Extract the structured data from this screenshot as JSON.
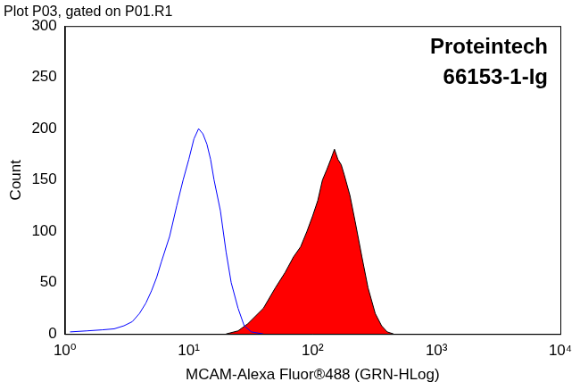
{
  "chart_data": {
    "type": "line",
    "title": "Plot P03, gated on P01.R1",
    "annotations": [
      "Proteintech",
      "66153-1-Ig"
    ],
    "x_label": "MCAM-Alexa Fluor®488 (GRN-HLog)",
    "y_label": "Count",
    "log": "x",
    "grid": false,
    "xlim": [
      1,
      10000
    ],
    "xticks": [
      {
        "value": 1,
        "label": "10⁰"
      },
      {
        "value": 10,
        "label": "10¹"
      },
      {
        "value": 100,
        "label": "10²"
      },
      {
        "value": 1000,
        "label": "10³"
      },
      {
        "value": 10000,
        "label": "10⁴"
      }
    ],
    "ylim": [
      0,
      300
    ],
    "yticks": [
      0,
      50,
      100,
      150,
      200,
      250,
      300
    ],
    "series": [
      {
        "type": "line",
        "color": "#0000ff",
        "x": [
          1.1,
          1.5,
          2,
          2.5,
          3,
          3.5,
          4,
          4.5,
          5,
          5.5,
          6,
          7,
          8,
          9,
          10,
          11,
          12,
          13,
          14,
          15,
          16,
          18,
          20,
          22,
          25,
          28,
          32,
          40
        ],
        "values": [
          2,
          3,
          4,
          5,
          8,
          12,
          20,
          30,
          42,
          55,
          70,
          95,
          125,
          150,
          170,
          190,
          200,
          195,
          185,
          170,
          150,
          120,
          80,
          50,
          25,
          8,
          2,
          0
        ]
      },
      {
        "type": "area",
        "color": "#ff0000",
        "x": [
          20,
          25,
          30,
          40,
          50,
          60,
          70,
          80,
          90,
          100,
          110,
          120,
          130,
          140,
          150,
          160,
          170,
          180,
          200,
          220,
          250,
          280,
          320,
          360,
          400,
          450
        ],
        "values": [
          0,
          3,
          10,
          25,
          45,
          60,
          75,
          85,
          100,
          115,
          130,
          150,
          160,
          170,
          180,
          170,
          165,
          155,
          135,
          110,
          75,
          45,
          20,
          8,
          2,
          0
        ]
      }
    ]
  }
}
